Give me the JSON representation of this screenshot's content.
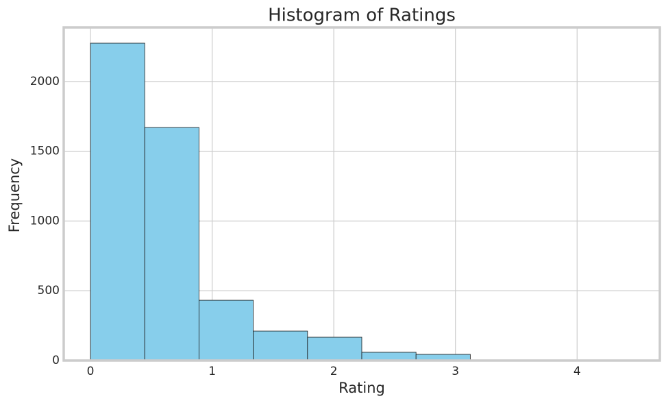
{
  "chart_data": {
    "type": "histogram",
    "title": "Histogram of Ratings",
    "x_label": "Rating",
    "y_label": "Frequency",
    "bins": [
      0,
      0.446,
      0.892,
      1.338,
      1.784,
      2.23,
      2.676,
      3.122,
      3.568,
      4.014,
      4.46
    ],
    "values": [
      2275,
      1671,
      432,
      211,
      167,
      59,
      44,
      3,
      1,
      1
    ],
    "color": "#87ceeb",
    "edgecolor": "#1a1a1a",
    "xlim": [
      -0.22,
      4.68
    ],
    "xticks": [
      0,
      1,
      2,
      3,
      4
    ],
    "ylim": [
      0,
      2388
    ],
    "yticks": [
      0,
      500,
      1000,
      1500,
      2000
    ],
    "grid": true
  }
}
